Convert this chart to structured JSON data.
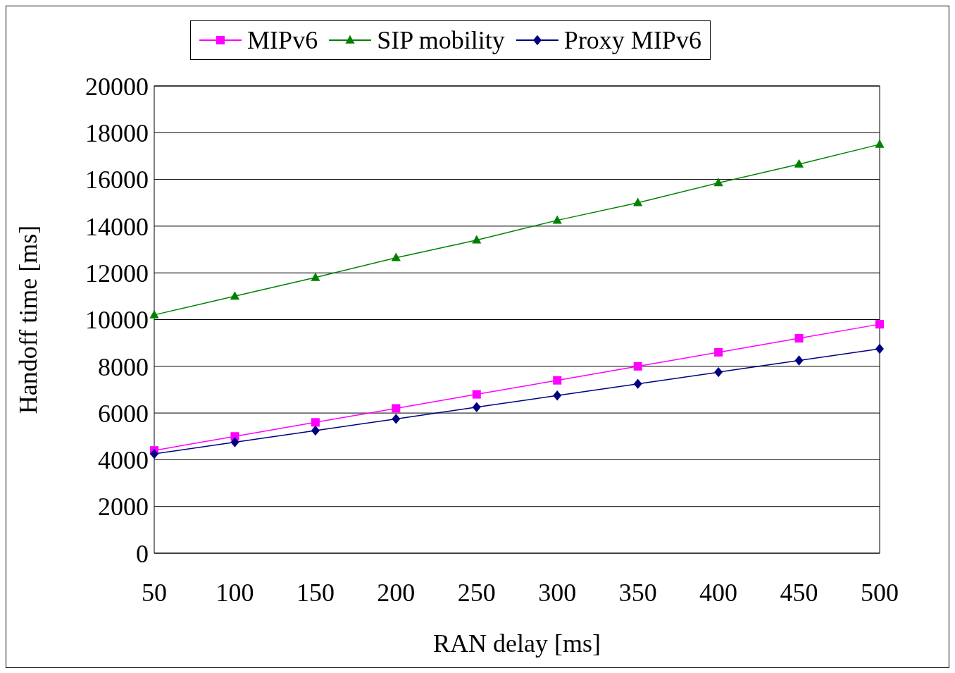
{
  "chart_data": {
    "type": "line",
    "xlabel": "RAN delay [ms]",
    "ylabel": "Handoff time [ms]",
    "categories": [
      "50",
      "100",
      "150",
      "200",
      "250",
      "300",
      "350",
      "400",
      "450",
      "500"
    ],
    "series": [
      {
        "name": "MIPv6",
        "color": "#ff00ff",
        "marker": "square",
        "values": [
          4400,
          5000,
          5600,
          6200,
          6800,
          7400,
          8000,
          8600,
          9200,
          9800
        ]
      },
      {
        "name": "SIP mobility",
        "color": "#008000",
        "marker": "triangle",
        "values": [
          10200,
          11000,
          11800,
          12650,
          13400,
          14250,
          15000,
          15850,
          16650,
          17500
        ]
      },
      {
        "name": "Proxy MIPv6",
        "color": "#000080",
        "marker": "diamond",
        "values": [
          4250,
          4750,
          5250,
          5750,
          6250,
          6750,
          7250,
          7750,
          8250,
          8750
        ]
      }
    ],
    "ylim": [
      0,
      20000
    ],
    "yticks": [
      0,
      2000,
      4000,
      6000,
      8000,
      10000,
      12000,
      14000,
      16000,
      18000,
      20000
    ],
    "grid": "y",
    "legend": "top",
    "line_style": "solid"
  }
}
